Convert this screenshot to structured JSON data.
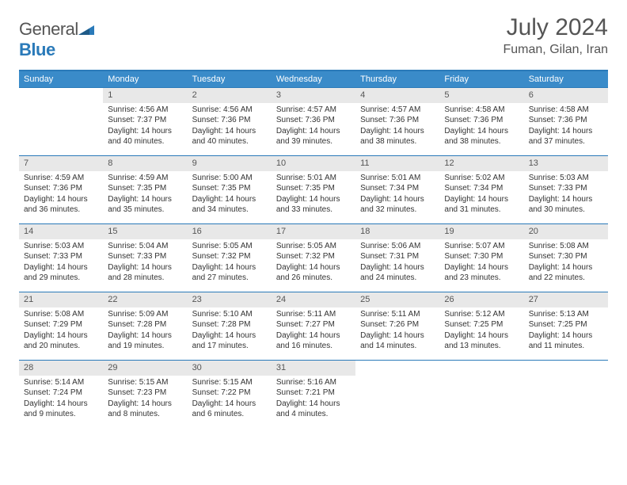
{
  "brand": {
    "name_gray": "General",
    "name_blue": "Blue"
  },
  "title": "July 2024",
  "location": "Fuman, Gilan, Iran",
  "colors": {
    "header_bg": "#3a8bc9",
    "header_border": "#2a7ab9",
    "daynum_bg": "#e8e8e8",
    "text": "#333333",
    "title_text": "#555555"
  },
  "weekdays": [
    "Sunday",
    "Monday",
    "Tuesday",
    "Wednesday",
    "Thursday",
    "Friday",
    "Saturday"
  ],
  "weeks": [
    [
      null,
      {
        "n": "1",
        "sr": "Sunrise: 4:56 AM",
        "ss": "Sunset: 7:37 PM",
        "d1": "Daylight: 14 hours",
        "d2": "and 40 minutes."
      },
      {
        "n": "2",
        "sr": "Sunrise: 4:56 AM",
        "ss": "Sunset: 7:36 PM",
        "d1": "Daylight: 14 hours",
        "d2": "and 40 minutes."
      },
      {
        "n": "3",
        "sr": "Sunrise: 4:57 AM",
        "ss": "Sunset: 7:36 PM",
        "d1": "Daylight: 14 hours",
        "d2": "and 39 minutes."
      },
      {
        "n": "4",
        "sr": "Sunrise: 4:57 AM",
        "ss": "Sunset: 7:36 PM",
        "d1": "Daylight: 14 hours",
        "d2": "and 38 minutes."
      },
      {
        "n": "5",
        "sr": "Sunrise: 4:58 AM",
        "ss": "Sunset: 7:36 PM",
        "d1": "Daylight: 14 hours",
        "d2": "and 38 minutes."
      },
      {
        "n": "6",
        "sr": "Sunrise: 4:58 AM",
        "ss": "Sunset: 7:36 PM",
        "d1": "Daylight: 14 hours",
        "d2": "and 37 minutes."
      }
    ],
    [
      {
        "n": "7",
        "sr": "Sunrise: 4:59 AM",
        "ss": "Sunset: 7:36 PM",
        "d1": "Daylight: 14 hours",
        "d2": "and 36 minutes."
      },
      {
        "n": "8",
        "sr": "Sunrise: 4:59 AM",
        "ss": "Sunset: 7:35 PM",
        "d1": "Daylight: 14 hours",
        "d2": "and 35 minutes."
      },
      {
        "n": "9",
        "sr": "Sunrise: 5:00 AM",
        "ss": "Sunset: 7:35 PM",
        "d1": "Daylight: 14 hours",
        "d2": "and 34 minutes."
      },
      {
        "n": "10",
        "sr": "Sunrise: 5:01 AM",
        "ss": "Sunset: 7:35 PM",
        "d1": "Daylight: 14 hours",
        "d2": "and 33 minutes."
      },
      {
        "n": "11",
        "sr": "Sunrise: 5:01 AM",
        "ss": "Sunset: 7:34 PM",
        "d1": "Daylight: 14 hours",
        "d2": "and 32 minutes."
      },
      {
        "n": "12",
        "sr": "Sunrise: 5:02 AM",
        "ss": "Sunset: 7:34 PM",
        "d1": "Daylight: 14 hours",
        "d2": "and 31 minutes."
      },
      {
        "n": "13",
        "sr": "Sunrise: 5:03 AM",
        "ss": "Sunset: 7:33 PM",
        "d1": "Daylight: 14 hours",
        "d2": "and 30 minutes."
      }
    ],
    [
      {
        "n": "14",
        "sr": "Sunrise: 5:03 AM",
        "ss": "Sunset: 7:33 PM",
        "d1": "Daylight: 14 hours",
        "d2": "and 29 minutes."
      },
      {
        "n": "15",
        "sr": "Sunrise: 5:04 AM",
        "ss": "Sunset: 7:33 PM",
        "d1": "Daylight: 14 hours",
        "d2": "and 28 minutes."
      },
      {
        "n": "16",
        "sr": "Sunrise: 5:05 AM",
        "ss": "Sunset: 7:32 PM",
        "d1": "Daylight: 14 hours",
        "d2": "and 27 minutes."
      },
      {
        "n": "17",
        "sr": "Sunrise: 5:05 AM",
        "ss": "Sunset: 7:32 PM",
        "d1": "Daylight: 14 hours",
        "d2": "and 26 minutes."
      },
      {
        "n": "18",
        "sr": "Sunrise: 5:06 AM",
        "ss": "Sunset: 7:31 PM",
        "d1": "Daylight: 14 hours",
        "d2": "and 24 minutes."
      },
      {
        "n": "19",
        "sr": "Sunrise: 5:07 AM",
        "ss": "Sunset: 7:30 PM",
        "d1": "Daylight: 14 hours",
        "d2": "and 23 minutes."
      },
      {
        "n": "20",
        "sr": "Sunrise: 5:08 AM",
        "ss": "Sunset: 7:30 PM",
        "d1": "Daylight: 14 hours",
        "d2": "and 22 minutes."
      }
    ],
    [
      {
        "n": "21",
        "sr": "Sunrise: 5:08 AM",
        "ss": "Sunset: 7:29 PM",
        "d1": "Daylight: 14 hours",
        "d2": "and 20 minutes."
      },
      {
        "n": "22",
        "sr": "Sunrise: 5:09 AM",
        "ss": "Sunset: 7:28 PM",
        "d1": "Daylight: 14 hours",
        "d2": "and 19 minutes."
      },
      {
        "n": "23",
        "sr": "Sunrise: 5:10 AM",
        "ss": "Sunset: 7:28 PM",
        "d1": "Daylight: 14 hours",
        "d2": "and 17 minutes."
      },
      {
        "n": "24",
        "sr": "Sunrise: 5:11 AM",
        "ss": "Sunset: 7:27 PM",
        "d1": "Daylight: 14 hours",
        "d2": "and 16 minutes."
      },
      {
        "n": "25",
        "sr": "Sunrise: 5:11 AM",
        "ss": "Sunset: 7:26 PM",
        "d1": "Daylight: 14 hours",
        "d2": "and 14 minutes."
      },
      {
        "n": "26",
        "sr": "Sunrise: 5:12 AM",
        "ss": "Sunset: 7:25 PM",
        "d1": "Daylight: 14 hours",
        "d2": "and 13 minutes."
      },
      {
        "n": "27",
        "sr": "Sunrise: 5:13 AM",
        "ss": "Sunset: 7:25 PM",
        "d1": "Daylight: 14 hours",
        "d2": "and 11 minutes."
      }
    ],
    [
      {
        "n": "28",
        "sr": "Sunrise: 5:14 AM",
        "ss": "Sunset: 7:24 PM",
        "d1": "Daylight: 14 hours",
        "d2": "and 9 minutes."
      },
      {
        "n": "29",
        "sr": "Sunrise: 5:15 AM",
        "ss": "Sunset: 7:23 PM",
        "d1": "Daylight: 14 hours",
        "d2": "and 8 minutes."
      },
      {
        "n": "30",
        "sr": "Sunrise: 5:15 AM",
        "ss": "Sunset: 7:22 PM",
        "d1": "Daylight: 14 hours",
        "d2": "and 6 minutes."
      },
      {
        "n": "31",
        "sr": "Sunrise: 5:16 AM",
        "ss": "Sunset: 7:21 PM",
        "d1": "Daylight: 14 hours",
        "d2": "and 4 minutes."
      },
      null,
      null,
      null
    ]
  ]
}
